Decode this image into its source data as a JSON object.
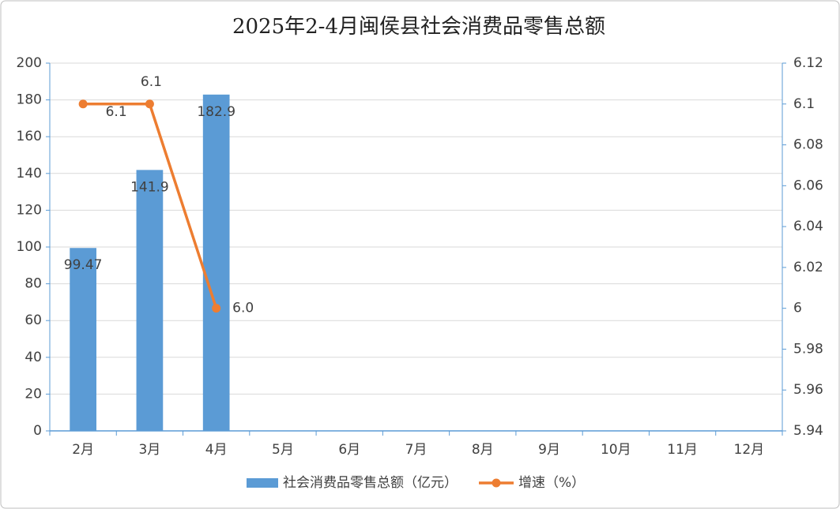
{
  "chart_data": {
    "type": "bar-line",
    "title": "2025年2-4月闽侯县社会消费品零售总额",
    "categories": [
      "2月",
      "3月",
      "4月",
      "5月",
      "6月",
      "7月",
      "8月",
      "9月",
      "10月",
      "11月",
      "12月"
    ],
    "series": [
      {
        "name": "社会消费品零售总额（亿元）",
        "type": "bar",
        "color": "#5b9bd5",
        "values": [
          99.47,
          141.9,
          182.9,
          null,
          null,
          null,
          null,
          null,
          null,
          null,
          null
        ]
      },
      {
        "name": "增速（%）",
        "type": "line",
        "axis": "y2",
        "color": "#ed7d31",
        "values": [
          6.1,
          6.1,
          6,
          null,
          null,
          null,
          null,
          null,
          null,
          null,
          null
        ],
        "value_labels": [
          "6.1",
          "6.1",
          "6.0",
          null,
          null,
          null,
          null,
          null,
          null,
          null,
          null
        ]
      }
    ],
    "ylim": [
      0,
      200
    ],
    "yticks": [
      0,
      20,
      40,
      60,
      80,
      100,
      120,
      140,
      160,
      180,
      200
    ],
    "y2lim": [
      5.94,
      6.12
    ],
    "y2ticks": [
      5.94,
      5.96,
      5.98,
      6,
      6.02,
      6.04,
      6.06,
      6.08,
      6.1,
      6.12
    ],
    "grid": true,
    "legend": "bottom"
  }
}
